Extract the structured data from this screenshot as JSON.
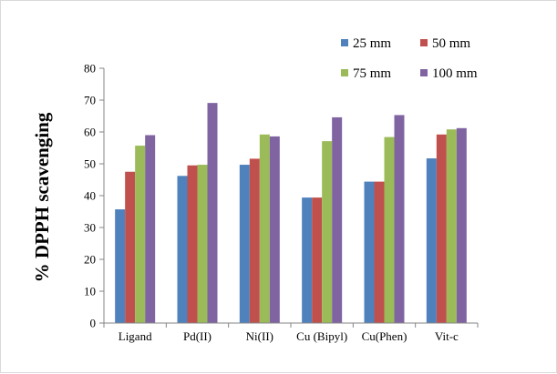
{
  "chart_data": {
    "type": "bar",
    "title": "",
    "xlabel": "",
    "ylabel": "% DPPH scavenging",
    "ylim": [
      0,
      80
    ],
    "yticks": [
      0,
      10,
      20,
      30,
      40,
      50,
      60,
      70,
      80
    ],
    "grid": false,
    "legend_position": "top-right",
    "categories": [
      "Ligand",
      "Pd(II)",
      "Ni(II)",
      "Cu (Bipyl)",
      "Cu(Phen)",
      "Vit-c"
    ],
    "series": [
      {
        "name": "25 mm",
        "color": "#4f81bd",
        "values": [
          35.7,
          46.2,
          49.7,
          39.4,
          44.4,
          51.7
        ]
      },
      {
        "name": "50 mm",
        "color": "#c0504d",
        "values": [
          47.5,
          49.5,
          51.6,
          39.4,
          44.4,
          59.2
        ]
      },
      {
        "name": "75 mm",
        "color": "#9bbb59",
        "values": [
          55.7,
          49.7,
          59.2,
          57.1,
          58.4,
          60.8
        ]
      },
      {
        "name": "100 mm",
        "color": "#8064a2",
        "values": [
          59.0,
          69.1,
          58.6,
          64.6,
          65.3,
          61.2
        ]
      }
    ]
  }
}
